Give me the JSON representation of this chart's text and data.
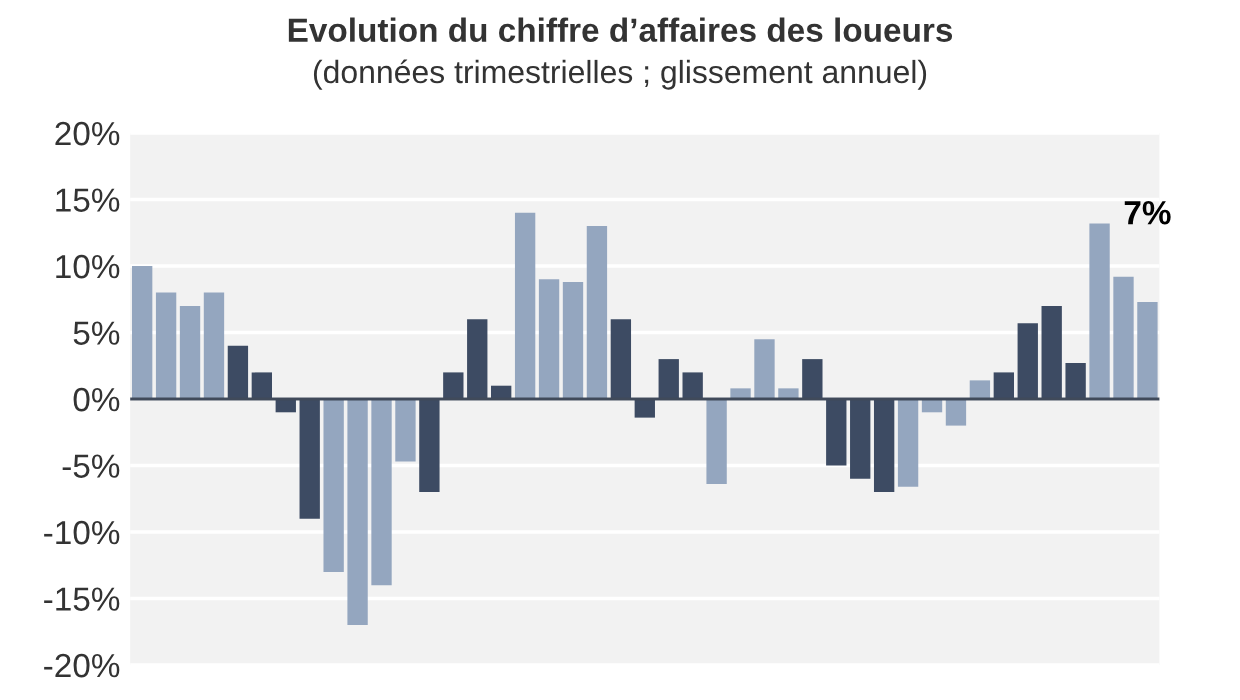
{
  "chart_data": {
    "type": "bar",
    "title": "Evolution du chiffre d’affaires des loueurs",
    "subtitle": "(données trimestrielles ; glissement annuel)",
    "categories": [
      null,
      null,
      null,
      null,
      null,
      null,
      null,
      null,
      null,
      null,
      null,
      null,
      null,
      null,
      null,
      null,
      null,
      null,
      null,
      null,
      null,
      null,
      null,
      null,
      null,
      null,
      null,
      null,
      null,
      null,
      null,
      null,
      null,
      null,
      null,
      null,
      null,
      null,
      null,
      null,
      null,
      null,
      null
    ],
    "values": [
      10,
      8,
      7,
      8,
      4,
      2,
      -1,
      -9,
      -13,
      -17,
      -14,
      -4.7,
      -7,
      2,
      6,
      1,
      14,
      9,
      8.8,
      13,
      6,
      -1.4,
      3,
      2,
      -6.4,
      0.8,
      4.5,
      0.8,
      3,
      -5,
      -6,
      -7,
      -6.6,
      -1,
      -2,
      1.4,
      2,
      5.7,
      7,
      2.7,
      13.2,
      9.2,
      7.3
    ],
    "colors": [
      "#94a6bf",
      "#94a6bf",
      "#94a6bf",
      "#94a6bf",
      "#3d4b63",
      "#3d4b63",
      "#3d4b63",
      "#3d4b63",
      "#94a6bf",
      "#94a6bf",
      "#94a6bf",
      "#94a6bf",
      "#3d4b63",
      "#3d4b63",
      "#3d4b63",
      "#3d4b63",
      "#94a6bf",
      "#94a6bf",
      "#94a6bf",
      "#94a6bf",
      "#3d4b63",
      "#3d4b63",
      "#3d4b63",
      "#3d4b63",
      "#94a6bf",
      "#94a6bf",
      "#94a6bf",
      "#94a6bf",
      "#3d4b63",
      "#3d4b63",
      "#3d4b63",
      "#3d4b63",
      "#94a6bf",
      "#94a6bf",
      "#94a6bf",
      "#94a6bf",
      "#3d4b63",
      "#3d4b63",
      "#3d4b63",
      "#3d4b63",
      "#94a6bf",
      "#94a6bf",
      "#94a6bf"
    ],
    "ylim": [
      -20,
      20
    ],
    "yticks": [
      {
        "value": -20,
        "label": "-20%"
      },
      {
        "value": -15,
        "label": "-15%"
      },
      {
        "value": -10,
        "label": "-10%"
      },
      {
        "value": -5,
        "label": "-5%"
      },
      {
        "value": 0,
        "label": "0%"
      },
      {
        "value": 5,
        "label": "5%"
      },
      {
        "value": 10,
        "label": "10%"
      },
      {
        "value": 15,
        "label": "15%"
      },
      {
        "value": 20,
        "label": "20%"
      }
    ],
    "grid": "y",
    "annotations": [
      "7%"
    ]
  }
}
